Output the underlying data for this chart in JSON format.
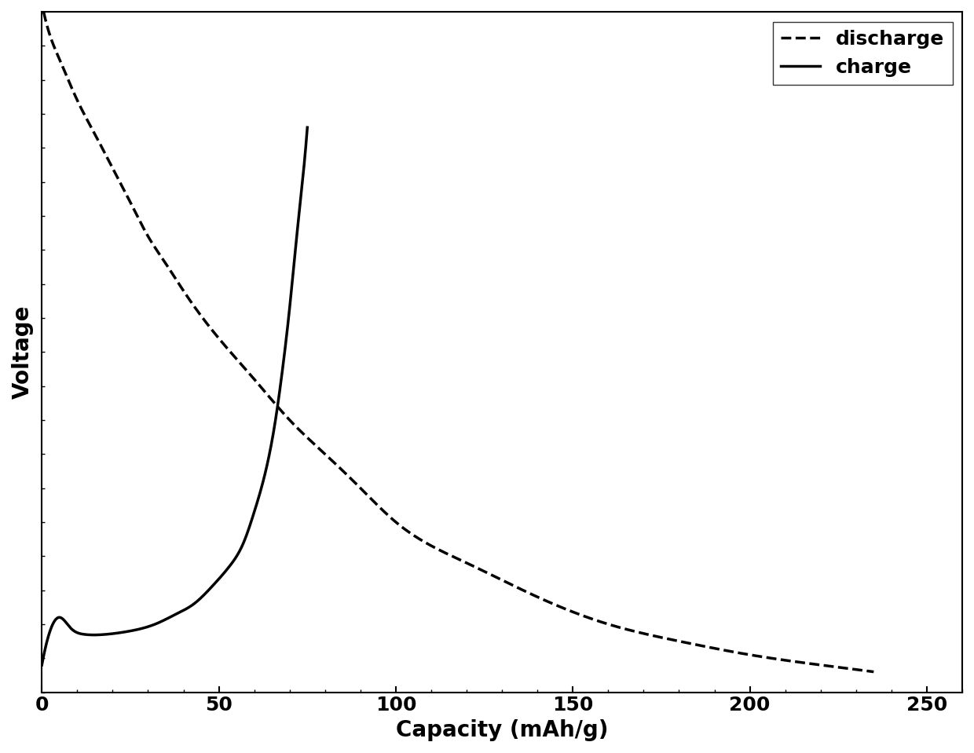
{
  "title": "",
  "xlabel": "Capacity (mAh/g)",
  "ylabel": "Voltage",
  "xlim": [
    0,
    260
  ],
  "xticks": [
    0,
    50,
    100,
    150,
    200,
    250
  ],
  "background_color": "#ffffff",
  "line_color": "#000000",
  "legend_labels": [
    "discharge",
    "charge"
  ],
  "legend_loc": "upper right",
  "xlabel_fontsize": 20,
  "ylabel_fontsize": 20,
  "legend_fontsize": 18,
  "tick_fontsize": 18,
  "linewidth": 2.5,
  "ymin": 0.0,
  "ymax": 1.0,
  "discharge_x": [
    0.5,
    2,
    5,
    10,
    15,
    20,
    25,
    30,
    35,
    40,
    50,
    60,
    70,
    80,
    90,
    100,
    120,
    140,
    160,
    180,
    200,
    220,
    235
  ],
  "discharge_y": [
    1.0,
    0.97,
    0.93,
    0.87,
    0.82,
    0.77,
    0.72,
    0.67,
    0.63,
    0.59,
    0.52,
    0.46,
    0.4,
    0.35,
    0.3,
    0.25,
    0.19,
    0.14,
    0.1,
    0.075,
    0.055,
    0.04,
    0.03
  ],
  "charge_x": [
    0,
    2,
    5,
    8,
    12,
    18,
    25,
    32,
    38,
    43,
    48,
    53,
    57,
    60,
    63,
    66,
    68,
    70,
    72,
    74,
    75
  ],
  "charge_y": [
    0.04,
    0.085,
    0.11,
    0.095,
    0.085,
    0.085,
    0.09,
    0.1,
    0.115,
    0.13,
    0.155,
    0.185,
    0.22,
    0.265,
    0.32,
    0.4,
    0.475,
    0.565,
    0.67,
    0.77,
    0.83
  ]
}
